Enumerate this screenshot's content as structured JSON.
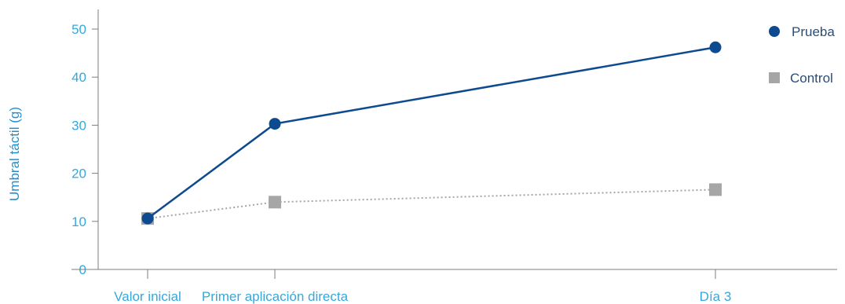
{
  "chart_data": {
    "type": "line",
    "title": "",
    "xlabel": "",
    "ylabel": "Umbral táctil (g)",
    "categories": [
      "Valor inicial",
      "Primer aplicación directa",
      "Día 3"
    ],
    "ylim": [
      0,
      50
    ],
    "yticks": [
      "0",
      "10",
      "20",
      "30",
      "40",
      "50"
    ],
    "grid": false,
    "legend_position": "top-right",
    "series": [
      {
        "name": "Prueba",
        "values": [
          10.6,
          30.3,
          46.2
        ],
        "color": "#0e4a8f",
        "marker": "circle",
        "line_style": "solid"
      },
      {
        "name": "Control",
        "values": [
          10.6,
          14.0,
          16.6
        ],
        "color": "#a6a6a6",
        "marker": "square",
        "line_style": "dotted"
      }
    ],
    "axis_color": "#7d7d7d",
    "tick_color": "#35a8dc"
  }
}
